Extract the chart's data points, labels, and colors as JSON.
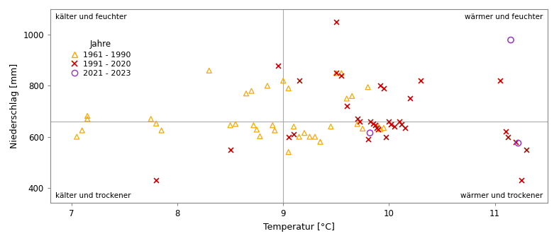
{
  "xlabel": "Temperatur [°C]",
  "ylabel": "Niederschlag [mm]",
  "mean_temp": 9.0,
  "mean_precip": 660,
  "xlim": [
    6.8,
    11.5
  ],
  "ylim": [
    340,
    1100
  ],
  "xticks": [
    7,
    8,
    9,
    10,
    11
  ],
  "yticks": [
    400,
    600,
    800,
    1000
  ],
  "corner_labels": {
    "top_left": "kälter und feuchter",
    "top_right": "wärmer und feuchter",
    "bottom_left": "kälter und trockener",
    "bottom_right": "wärmer und trockener"
  },
  "series_1961_1990": {
    "label": "1961 - 1990",
    "color": "#FFA500",
    "marker": "^",
    "data": [
      [
        7.05,
        600
      ],
      [
        7.1,
        625
      ],
      [
        7.15,
        670
      ],
      [
        7.15,
        682
      ],
      [
        7.75,
        670
      ],
      [
        7.8,
        652
      ],
      [
        7.85,
        625
      ],
      [
        8.3,
        860
      ],
      [
        8.5,
        645
      ],
      [
        8.55,
        650
      ],
      [
        8.65,
        770
      ],
      [
        8.7,
        780
      ],
      [
        8.72,
        645
      ],
      [
        8.75,
        628
      ],
      [
        8.78,
        602
      ],
      [
        8.85,
        800
      ],
      [
        8.9,
        645
      ],
      [
        8.92,
        625
      ],
      [
        9.0,
        820
      ],
      [
        9.05,
        790
      ],
      [
        9.05,
        540
      ],
      [
        9.1,
        640
      ],
      [
        9.15,
        600
      ],
      [
        9.2,
        615
      ],
      [
        9.25,
        600
      ],
      [
        9.3,
        600
      ],
      [
        9.35,
        580
      ],
      [
        9.45,
        640
      ],
      [
        9.5,
        850
      ],
      [
        9.55,
        850
      ],
      [
        9.6,
        750
      ],
      [
        9.65,
        760
      ],
      [
        9.7,
        650
      ],
      [
        9.75,
        632
      ],
      [
        9.8,
        795
      ],
      [
        9.9,
        640
      ],
      [
        9.92,
        630
      ],
      [
        9.95,
        635
      ]
    ]
  },
  "series_1991_2020": {
    "label": "1991 - 2020",
    "color": "#CC0000",
    "marker": "x",
    "data": [
      [
        7.8,
        430
      ],
      [
        8.5,
        550
      ],
      [
        8.95,
        880
      ],
      [
        9.05,
        600
      ],
      [
        9.1,
        610
      ],
      [
        9.15,
        820
      ],
      [
        9.5,
        1050
      ],
      [
        9.5,
        850
      ],
      [
        9.55,
        840
      ],
      [
        9.6,
        720
      ],
      [
        9.7,
        670
      ],
      [
        9.72,
        660
      ],
      [
        9.8,
        590
      ],
      [
        9.82,
        660
      ],
      [
        9.85,
        652
      ],
      [
        9.87,
        645
      ],
      [
        9.88,
        635
      ],
      [
        9.9,
        630
      ],
      [
        9.92,
        800
      ],
      [
        9.95,
        790
      ],
      [
        9.97,
        600
      ],
      [
        10.0,
        660
      ],
      [
        10.02,
        650
      ],
      [
        10.05,
        640
      ],
      [
        10.1,
        660
      ],
      [
        10.12,
        650
      ],
      [
        10.15,
        635
      ],
      [
        10.2,
        750
      ],
      [
        10.3,
        820
      ],
      [
        11.05,
        820
      ],
      [
        11.1,
        620
      ],
      [
        11.12,
        600
      ],
      [
        11.2,
        580
      ],
      [
        11.25,
        430
      ],
      [
        11.3,
        550
      ]
    ]
  },
  "series_2021_2023": {
    "label": "2021 - 2023",
    "color": "#9933CC",
    "marker": "o",
    "data": [
      [
        9.82,
        615
      ],
      [
        11.15,
        980
      ],
      [
        11.22,
        575
      ]
    ]
  },
  "legend_title": "Jahre",
  "background_color": "#ffffff",
  "grid_color": "#aaaaaa",
  "font_color": "#000000"
}
